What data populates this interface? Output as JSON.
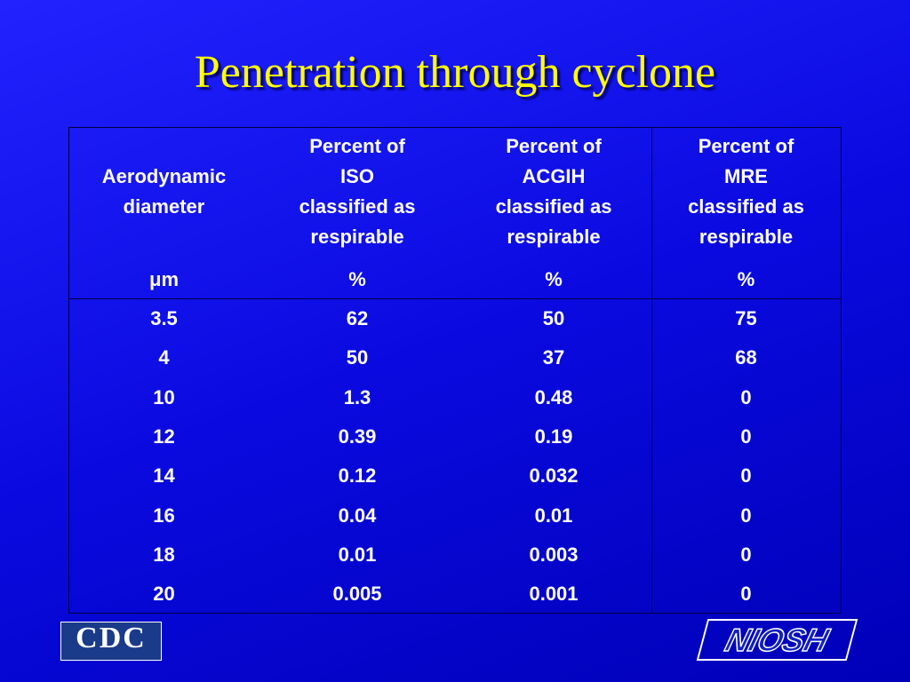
{
  "title": "Penetration through cyclone",
  "table": {
    "headers": [
      [
        "Aerodynamic",
        "diameter"
      ],
      [
        "Percent of",
        "ISO",
        "classified as",
        "respirable"
      ],
      [
        "Percent of",
        "ACGIH",
        "classified as",
        "respirable"
      ],
      [
        "Percent of",
        "MRE",
        "classified as",
        "respirable"
      ]
    ],
    "units": [
      "μm",
      "%",
      "%",
      "%"
    ],
    "rows": [
      [
        3.5,
        62,
        50,
        75
      ],
      [
        4,
        50,
        37,
        68
      ],
      [
        10,
        1.3,
        0.48,
        0
      ],
      [
        12,
        0.39,
        0.19,
        0
      ],
      [
        14,
        0.12,
        0.032,
        0
      ],
      [
        16,
        0.04,
        0.01,
        0
      ],
      [
        18,
        0.01,
        0.003,
        0
      ],
      [
        20,
        0.005,
        0.001,
        0
      ]
    ]
  },
  "logos": {
    "cdc": "CDC",
    "niosh": "NIOSH"
  }
}
